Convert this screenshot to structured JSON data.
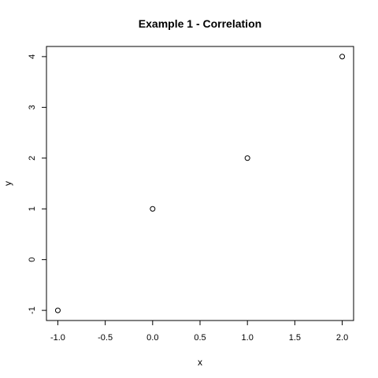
{
  "chart_data": {
    "type": "scatter",
    "title": "Example 1 - Correlation",
    "xlabel": "x",
    "ylabel": "y",
    "x": [
      -1,
      0,
      1,
      2
    ],
    "y": [
      -1,
      1,
      2,
      4
    ],
    "xlim": [
      -1.12,
      2.12
    ],
    "ylim": [
      -1.2,
      4.2
    ],
    "x_ticks": [
      -1.0,
      -0.5,
      0.0,
      0.5,
      1.0,
      1.5,
      2.0
    ],
    "x_tick_labels": [
      "-1.0",
      "-0.5",
      "0.0",
      "0.5",
      "1.0",
      "1.5",
      "2.0"
    ],
    "y_ticks": [
      -1,
      0,
      1,
      2,
      3,
      4
    ],
    "y_tick_labels": [
      "-1",
      "0",
      "1",
      "2",
      "3",
      "4"
    ],
    "grid": false,
    "marker": "open-circle",
    "point_color": "#000000"
  }
}
